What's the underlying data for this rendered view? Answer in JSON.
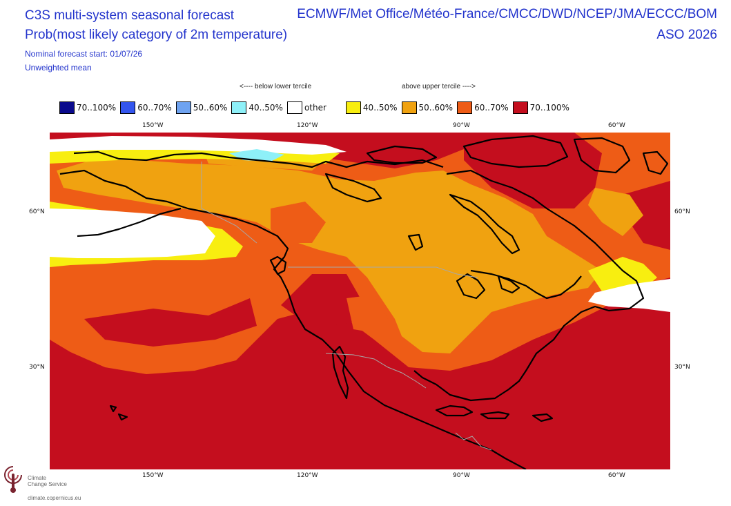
{
  "header": {
    "title_line1": "C3S multi-system seasonal forecast",
    "title_line2": "Prob(most likely category of 2m temperature)",
    "providers": "ECMWF/Met Office/Météo-France/CMCC/DWD/NCEP/JMA/ECCC/BOM",
    "season": "ASO 2026",
    "forecast_start": "Nominal forecast start: 01/07/26",
    "mean_type": "Unweighted mean"
  },
  "tercile_labels": {
    "below": "<---- below lower tercile",
    "above": "above upper tercile ---->"
  },
  "legend": [
    {
      "label": "70..100%",
      "color": "#0a0a8c"
    },
    {
      "label": "60..70%",
      "color": "#3355ee"
    },
    {
      "label": "50..60%",
      "color": "#6fa3f0"
    },
    {
      "label": "40..50%",
      "color": "#8ef0f8"
    },
    {
      "label": "other",
      "color": "#ffffff"
    },
    {
      "label": "40..50%",
      "color": "#f8ee10"
    },
    {
      "label": "50..60%",
      "color": "#f0a210"
    },
    {
      "label": "60..70%",
      "color": "#ee5c16"
    },
    {
      "label": "70..100%",
      "color": "#c40e1e"
    }
  ],
  "axes": {
    "lon_ticks": [
      "150°W",
      "120°W",
      "90°W",
      "60°W"
    ],
    "lat_ticks": [
      "60°N",
      "30°N"
    ]
  },
  "logo": {
    "line1": "Climate",
    "line2": "Change Service",
    "url": "climate.copernicus.eu"
  }
}
